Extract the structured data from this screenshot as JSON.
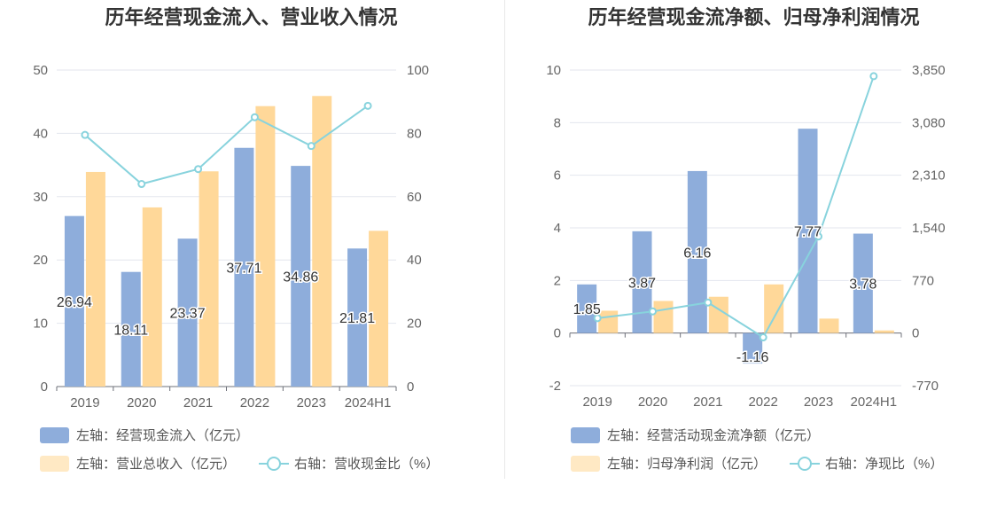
{
  "chart_data": [
    {
      "type": "bar",
      "title": "历年经营现金流入、营业收入情况",
      "categories": [
        "2019",
        "2020",
        "2021",
        "2022",
        "2023",
        "2024H1"
      ],
      "series": [
        {
          "name": "左轴：经营现金流入（亿元）",
          "axis": "left",
          "type": "bar",
          "color": "#8eaddb",
          "values": [
            26.94,
            18.11,
            23.37,
            37.71,
            34.86,
            21.81
          ],
          "labels": [
            "26.94",
            "18.11",
            "23.37",
            "37.71",
            "34.86",
            "21.81"
          ]
        },
        {
          "name": "左轴：营业总收入（亿元）",
          "axis": "left",
          "type": "bar",
          "color": "#ffd899",
          "values": [
            33.9,
            28.3,
            34.0,
            44.3,
            45.9,
            24.6
          ]
        },
        {
          "name": "右轴：营收现金比（%）",
          "axis": "right",
          "type": "line",
          "color": "#88d3dd",
          "values": [
            79.5,
            64.0,
            68.7,
            85.1,
            76.0,
            88.7
          ]
        }
      ],
      "yleft": {
        "min": 0,
        "max": 50,
        "ticks": [
          "0",
          "10",
          "20",
          "30",
          "40",
          "50"
        ]
      },
      "yright": {
        "min": 0,
        "max": 100,
        "ticks": [
          "0",
          "20",
          "40",
          "60",
          "80",
          "100"
        ]
      },
      "legend": "bottom",
      "grid": true
    },
    {
      "type": "bar",
      "title": "历年经营现金流净额、归母净利润情况",
      "categories": [
        "2019",
        "2020",
        "2021",
        "2022",
        "2023",
        "2024H1"
      ],
      "series": [
        {
          "name": "左轴：经营活动现金流净额（亿元）",
          "axis": "left",
          "type": "bar",
          "color": "#8eaddb",
          "values": [
            1.85,
            3.87,
            6.16,
            -1.16,
            7.77,
            3.78
          ],
          "labels": [
            "1.85",
            "3.87",
            "6.16",
            "-1.16",
            "7.77",
            "3.78"
          ]
        },
        {
          "name": "左轴：归母净利润（亿元）",
          "axis": "left",
          "type": "bar",
          "color": "#ffd899",
          "values": [
            0.85,
            1.22,
            1.38,
            1.85,
            0.55,
            0.1
          ]
        },
        {
          "name": "右轴：净现比（%）",
          "axis": "right",
          "type": "line",
          "color": "#88d3dd",
          "values": [
            218,
            317,
            447,
            -63,
            1414,
            3760
          ]
        }
      ],
      "yleft": {
        "min": -2,
        "max": 10,
        "ticks": [
          "-2",
          "0",
          "2",
          "4",
          "6",
          "8",
          "10"
        ]
      },
      "yright": {
        "min": -770,
        "max": 3850,
        "ticks": [
          "-770",
          "0",
          "770",
          "1,540",
          "2,310",
          "3,080",
          "3,850"
        ]
      },
      "legend": "bottom",
      "grid": true
    }
  ]
}
